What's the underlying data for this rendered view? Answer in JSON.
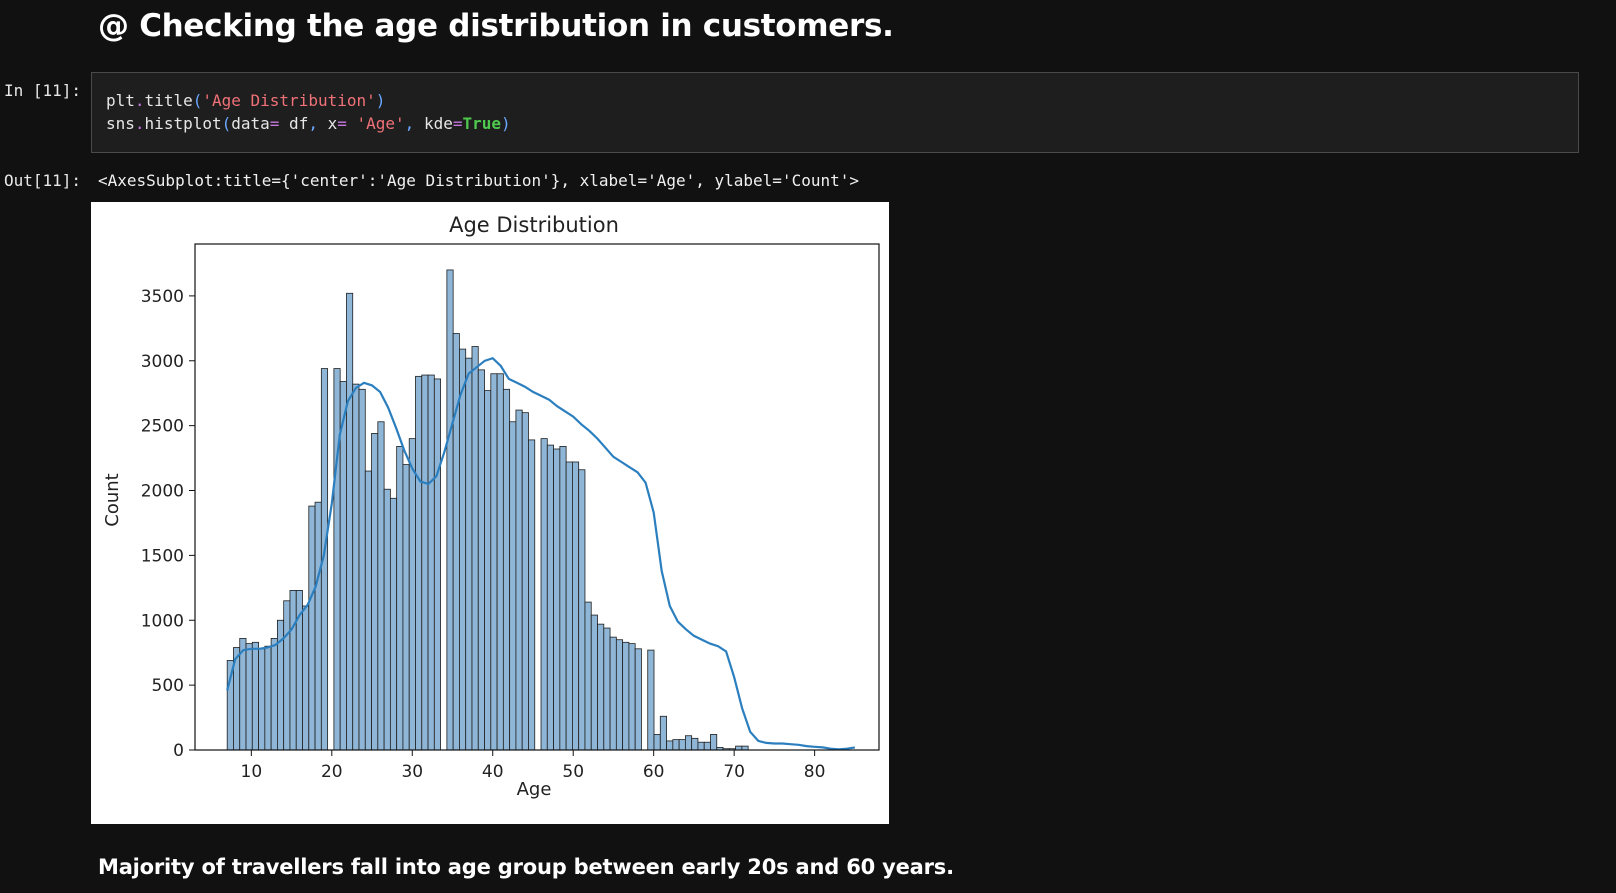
{
  "notebook": {
    "heading": "@ Checking the age distribution in customers.",
    "in_prompt": "In [11]:",
    "out_prompt": "Out[11]:",
    "output_text": "<AxesSubplot:title={'center':'Age Distribution'}, xlabel='Age', ylabel='Count'>",
    "markdown_note": "Majority of travellers fall into age group between early 20s and 60 years.",
    "code": {
      "line1": {
        "obj": "plt",
        "dot": ".",
        "fn": "title",
        "open": "(",
        "arg": "'Age Distribution'",
        "close": ")"
      },
      "line2": {
        "obj": "sns",
        "dot": ".",
        "fn": "histplot",
        "open": "(",
        "k1": "data",
        "eq1": "=",
        "v1": " df",
        "c1": ",",
        "k2": " x",
        "eq2": "=",
        "v2": " 'Age'",
        "c2": ",",
        "k3": " kde",
        "eq3": "=",
        "v3": "True",
        "close": ")"
      }
    }
  },
  "colors": {
    "background": "#111111",
    "bar_fill": "#8fb6d6",
    "bar_edge": "#1f1f1f",
    "kde_line": "#2c7fbf"
  },
  "chart_data": {
    "type": "bar",
    "title": "Age Distribution",
    "xlabel": "Age",
    "ylabel": "Count",
    "xlim": [
      3,
      88
    ],
    "ylim": [
      0,
      3900
    ],
    "xticks": [
      10,
      20,
      30,
      40,
      50,
      60,
      70,
      80
    ],
    "yticks": [
      0,
      500,
      1000,
      1500,
      2000,
      2500,
      3000,
      3500
    ],
    "bin_start": 7,
    "bin_width": 0.78,
    "values": [
      690,
      790,
      860,
      820,
      830,
      780,
      800,
      860,
      1000,
      1150,
      1230,
      1230,
      1110,
      1880,
      1910,
      2940,
      0,
      2940,
      2840,
      3520,
      2820,
      2780,
      2150,
      2440,
      2530,
      2010,
      1940,
      2340,
      2200,
      2400,
      2880,
      2890,
      2890,
      2860,
      0,
      3700,
      3210,
      3090,
      3020,
      3110,
      2930,
      2770,
      2900,
      2900,
      2780,
      2530,
      2620,
      2600,
      2390,
      0,
      2400,
      2350,
      2320,
      2340,
      2220,
      2220,
      2160,
      1140,
      1040,
      970,
      940,
      870,
      850,
      830,
      820,
      780,
      0,
      770,
      120,
      260,
      70,
      80,
      80,
      110,
      90,
      60,
      60,
      120,
      20,
      10,
      10,
      30,
      30
    ],
    "kde": {
      "x": [
        7,
        8,
        9,
        10,
        11,
        12,
        13,
        14,
        15,
        16,
        17,
        18,
        19,
        20,
        21,
        22,
        23,
        24,
        25,
        26,
        27,
        28,
        29,
        30,
        31,
        32,
        33,
        34,
        35,
        36,
        37,
        38,
        39,
        40,
        41,
        42,
        43,
        44,
        45,
        46,
        47,
        48,
        49,
        50,
        51,
        52,
        53,
        54,
        55,
        56,
        57,
        58,
        59,
        60,
        61,
        62,
        63,
        64,
        65,
        66,
        67,
        68,
        69,
        70,
        71,
        72,
        73,
        74,
        75,
        76,
        77,
        78,
        79,
        80,
        81,
        82,
        83,
        84,
        85
      ],
      "y": [
        460,
        700,
        770,
        780,
        780,
        790,
        810,
        860,
        930,
        1040,
        1120,
        1260,
        1500,
        1900,
        2430,
        2690,
        2790,
        2830,
        2810,
        2760,
        2640,
        2480,
        2310,
        2170,
        2070,
        2050,
        2110,
        2300,
        2520,
        2740,
        2900,
        2950,
        3000,
        3020,
        2960,
        2860,
        2830,
        2800,
        2760,
        2730,
        2700,
        2650,
        2610,
        2570,
        2510,
        2460,
        2400,
        2330,
        2260,
        2220,
        2180,
        2140,
        2060,
        1830,
        1380,
        1110,
        990,
        930,
        880,
        850,
        820,
        800,
        760,
        560,
        320,
        140,
        70,
        55,
        50,
        50,
        45,
        40,
        30,
        25,
        20,
        10,
        5,
        10,
        20
      ]
    }
  }
}
